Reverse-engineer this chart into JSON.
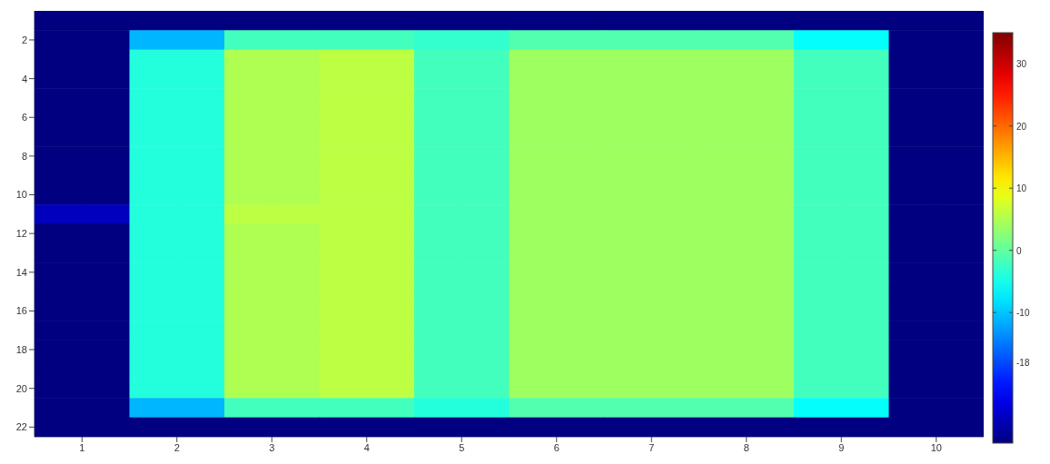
{
  "chart_data": {
    "type": "heatmap",
    "categories": [
      "1",
      "2",
      "3",
      "4",
      "5",
      "6",
      "7",
      "8",
      "9",
      "10"
    ],
    "y_categories": [
      null,
      "2",
      null,
      "4",
      null,
      "6",
      null,
      "8",
      null,
      "10",
      null,
      "12",
      null,
      "14",
      null,
      "16",
      null,
      "18",
      null,
      "20",
      null,
      "22"
    ],
    "cells": [
      [
        -31,
        -31,
        -31,
        -31,
        -31,
        -31,
        -31,
        -31,
        -31,
        -31
      ],
      [
        -31,
        -11,
        -2,
        -2,
        -3,
        -1,
        -1,
        -1,
        -6,
        -31
      ],
      [
        -31,
        -4,
        5,
        6,
        -2,
        4,
        4,
        4,
        -2,
        -31
      ],
      [
        -31,
        -4,
        5,
        6,
        -2,
        4,
        4,
        4,
        -2,
        -31
      ],
      [
        -31,
        -4,
        5,
        6,
        -2,
        4,
        4,
        4,
        -2,
        -31
      ],
      [
        -31,
        -4,
        5,
        6,
        -2,
        4,
        4,
        4,
        -2,
        -31
      ],
      [
        -31,
        -4,
        5,
        6,
        -2,
        4,
        4,
        4,
        -2,
        -31
      ],
      [
        -31,
        -4,
        5,
        6,
        -2,
        4,
        4,
        4,
        -2,
        -31
      ],
      [
        -31,
        -4,
        5,
        6,
        -2,
        4,
        4,
        4,
        -2,
        -31
      ],
      [
        -31,
        -4,
        5,
        6,
        -2,
        4,
        4,
        4,
        -2,
        -31
      ],
      [
        -27,
        -4,
        6,
        6,
        -2,
        4,
        4,
        4,
        -2,
        -31
      ],
      [
        -31,
        -4,
        5,
        6,
        -2,
        4,
        4,
        4,
        -2,
        -31
      ],
      [
        -31,
        -4,
        5,
        6,
        -2,
        4,
        4,
        4,
        -2,
        -31
      ],
      [
        -31,
        -4,
        5,
        6,
        -2,
        4,
        4,
        4,
        -2,
        -31
      ],
      [
        -31,
        -4,
        5,
        6,
        -2,
        4,
        4,
        4,
        -2,
        -31
      ],
      [
        -31,
        -4,
        5,
        6,
        -2,
        4,
        4,
        4,
        -2,
        -31
      ],
      [
        -31,
        -4,
        5,
        6,
        -2,
        4,
        4,
        4,
        -2,
        -31
      ],
      [
        -31,
        -4,
        5,
        6,
        -2,
        4,
        4,
        4,
        -2,
        -31
      ],
      [
        -31,
        -4,
        5,
        6,
        -2,
        4,
        4,
        4,
        -2,
        -31
      ],
      [
        -31,
        -4,
        5,
        6,
        -2,
        4,
        4,
        4,
        -2,
        -31
      ],
      [
        -31,
        -11,
        -2,
        -2,
        -4,
        -1,
        -1,
        -1,
        -6,
        -31
      ],
      [
        -31,
        -31,
        -31,
        -31,
        -31,
        -31,
        -31,
        -31,
        -31,
        -31
      ]
    ],
    "clim": [
      -31,
      35
    ],
    "cticks": [
      -18,
      -10,
      0,
      10,
      20,
      30
    ],
    "grid": true
  }
}
